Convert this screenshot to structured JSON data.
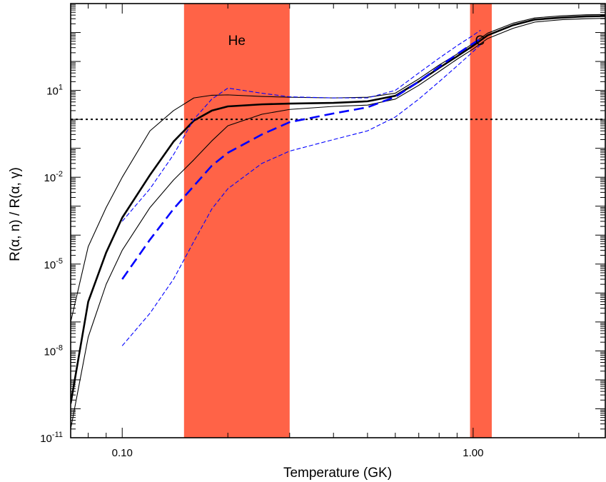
{
  "chart_data": {
    "type": "line",
    "xlabel": "Temperature (GK)",
    "ylabel": "R(α, n) / R(α, γ)",
    "xscale": "log",
    "yscale": "log",
    "xlim": [
      0.0713,
      2.38
    ],
    "ylim": [
      1e-11,
      10000.0
    ],
    "x_ticks": [
      {
        "value": 0.1,
        "label": "0.10"
      },
      {
        "value": 1.0,
        "label": "1.00"
      }
    ],
    "y_ticks": [
      {
        "value": 1e-11,
        "base": "10",
        "exp": "-11"
      },
      {
        "value": 1e-08,
        "base": "10",
        "exp": "-8"
      },
      {
        "value": 1e-05,
        "base": "10",
        "exp": "-5"
      },
      {
        "value": 0.01,
        "base": "10",
        "exp": "-2"
      },
      {
        "value": 10,
        "base": "10",
        "exp": "1"
      }
    ],
    "bands": [
      {
        "label": "He",
        "x": [
          0.15,
          0.3
        ],
        "color": "#ff6347"
      },
      {
        "label": "C",
        "x": [
          0.98,
          1.13
        ],
        "color": "#ff6347"
      }
    ],
    "hline": {
      "y": 1.0,
      "style": "dotted",
      "color": "#000000"
    },
    "series": [
      {
        "style": "thick-solid",
        "color": "#000000",
        "x": [
          0.0713,
          0.08,
          0.09,
          0.1,
          0.12,
          0.14,
          0.16,
          0.18,
          0.2,
          0.25,
          0.3,
          0.4,
          0.5,
          0.6,
          0.7,
          0.8,
          0.9,
          1.0,
          1.1,
          1.3,
          1.5,
          1.8,
          2.1,
          2.38
        ],
        "y": [
          1.5e-10,
          5e-07,
          2.5e-05,
          0.0004,
          0.012,
          0.17,
          0.9,
          2.0,
          2.8,
          3.3,
          3.5,
          3.7,
          4.2,
          6.5,
          20,
          60,
          150,
          350,
          800,
          1800,
          2800,
          3300,
          3600,
          3700
        ]
      },
      {
        "style": "thin-solid-upper",
        "color": "#000000",
        "x": [
          0.0713,
          0.08,
          0.09,
          0.1,
          0.12,
          0.14,
          0.16,
          0.18,
          0.2,
          0.25,
          0.3,
          0.4,
          0.5,
          0.6,
          0.7,
          0.8,
          0.9,
          1.0,
          1.1,
          1.3,
          1.5,
          1.8,
          2.1,
          2.38
        ],
        "y": [
          1e-07,
          4e-05,
          0.0009,
          0.01,
          0.4,
          2.0,
          5.5,
          6.8,
          7.0,
          6.2,
          5.8,
          5.5,
          5.8,
          8.0,
          25,
          75,
          180,
          420,
          950,
          2100,
          3200,
          3800,
          4100,
          4200
        ]
      },
      {
        "style": "thin-solid-lower",
        "color": "#000000",
        "x": [
          0.0713,
          0.08,
          0.09,
          0.1,
          0.12,
          0.14,
          0.16,
          0.18,
          0.2,
          0.25,
          0.3,
          0.4,
          0.5,
          0.6,
          0.7,
          0.8,
          0.9,
          1.0,
          1.1,
          1.3,
          1.5,
          1.8,
          2.1,
          2.38
        ],
        "y": [
          2e-11,
          3e-08,
          2e-06,
          3e-05,
          0.0009,
          0.008,
          0.04,
          0.18,
          0.6,
          1.5,
          2.2,
          2.8,
          3.1,
          5.0,
          15,
          45,
          120,
          270,
          620,
          1400,
          2300,
          2800,
          3000,
          3100
        ]
      },
      {
        "style": "thick-dashed",
        "color": "#0000ff",
        "x": [
          0.1,
          0.12,
          0.14,
          0.16,
          0.18,
          0.2,
          0.25,
          0.3,
          0.4,
          0.5,
          0.6,
          0.7,
          0.8,
          0.9,
          1.0,
          1.05
        ],
        "y": [
          3e-06,
          7e-05,
          0.0008,
          0.005,
          0.025,
          0.07,
          0.3,
          0.8,
          1.6,
          2.6,
          6.0,
          20,
          65,
          180,
          420,
          600
        ]
      },
      {
        "style": "thin-dashed-upper",
        "color": "#0000ff",
        "x": [
          0.1,
          0.12,
          0.14,
          0.16,
          0.18,
          0.2,
          0.25,
          0.3,
          0.4,
          0.5,
          0.6,
          0.7,
          0.8,
          0.9,
          1.0,
          1.05
        ],
        "y": [
          0.0003,
          0.004,
          0.06,
          1.0,
          5.0,
          12,
          8.0,
          6.0,
          5.5,
          5.5,
          10,
          40,
          130,
          350,
          800,
          1200
        ]
      },
      {
        "style": "thin-dashed-lower",
        "color": "#0000ff",
        "x": [
          0.1,
          0.12,
          0.14,
          0.16,
          0.18,
          0.2,
          0.25,
          0.3,
          0.4,
          0.5,
          0.6,
          0.7,
          0.8,
          0.9,
          1.0,
          1.05
        ],
        "y": [
          1.5e-08,
          2e-07,
          3e-06,
          6e-05,
          0.0008,
          0.004,
          0.03,
          0.08,
          0.2,
          0.4,
          1.2,
          5.0,
          20,
          70,
          220,
          380
        ]
      }
    ]
  }
}
